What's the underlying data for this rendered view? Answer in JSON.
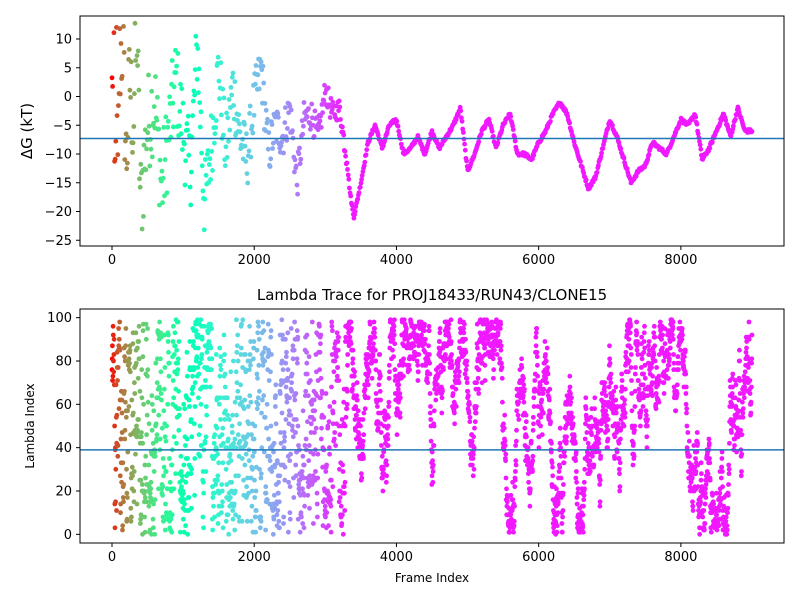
{
  "chart_data": [
    {
      "type": "scatter",
      "title": "",
      "xlabel": "",
      "ylabel": "ΔG (kT)",
      "xlim": [
        -450,
        9450
      ],
      "ylim": [
        -26,
        14
      ],
      "xticks": [
        0,
        2000,
        4000,
        6000,
        8000
      ],
      "yticks": [
        10,
        5,
        0,
        -5,
        -10,
        -15,
        -20,
        -25
      ],
      "colormap": "rainbow (red at frame 0 to violet at later frames)",
      "hline": {
        "y": -7.3,
        "color": "#1f77b4"
      },
      "series": [
        {
          "x": [
            0,
            20,
            40,
            60,
            80,
            100,
            150,
            200,
            250,
            300,
            350,
            400,
            500,
            600,
            700,
            800,
            900,
            1000,
            1100,
            1200,
            1300,
            1400,
            1500,
            1600,
            1700,
            1800,
            1900,
            2000,
            2100,
            2200,
            2300,
            2400,
            2500,
            2600,
            2700,
            2800,
            2900,
            3000,
            3100,
            3200,
            3300,
            3350,
            3400,
            3500,
            3600,
            3700,
            3800,
            3900,
            4000,
            4100,
            4200,
            4300,
            4400,
            4500,
            4600,
            4700,
            4800,
            4900,
            5000,
            5100,
            5200,
            5300,
            5400,
            5500,
            5600,
            5700,
            5800,
            5900,
            6000,
            6100,
            6200,
            6300,
            6400,
            6500,
            6600,
            6700,
            6800,
            6900,
            7000,
            7100,
            7200,
            7300,
            7400,
            7500,
            7600,
            7700,
            7800,
            7900,
            8000,
            8100,
            8200,
            8300,
            8400,
            8500,
            8600,
            8700,
            8800,
            8900,
            9000
          ],
          "y": [
            0,
            13,
            -22,
            8,
            -18,
            5,
            10,
            -12,
            3,
            -5,
            13,
            -19,
            -5,
            0,
            -16,
            -6,
            3,
            -6,
            -13,
            9,
            -19,
            -8,
            5,
            -10,
            2,
            -7,
            -11,
            -1,
            5,
            -10,
            -5,
            -7,
            -2,
            -15,
            -4,
            -3,
            -7,
            1,
            -3,
            -2,
            -11,
            -17,
            -21,
            -15,
            -8,
            -5,
            -9,
            -5,
            -4,
            -10,
            -9,
            -7,
            -10,
            -6,
            -9,
            -7,
            -5,
            -2,
            -13,
            -10,
            -6,
            -4,
            -9,
            -5,
            -3,
            -10,
            -10,
            -11,
            -8,
            -6,
            -3,
            -1,
            -3,
            -8,
            -12,
            -16,
            -14,
            -9,
            -4,
            -7,
            -11,
            -15,
            -13,
            -12,
            -8,
            -9,
            -10,
            -7,
            -4,
            -5,
            -3,
            -11,
            -9,
            -6,
            -3,
            -7,
            -2,
            -6,
            -6
          ]
        }
      ]
    },
    {
      "type": "scatter",
      "title": "Lambda Trace for PROJ18433/RUN43/CLONE15",
      "xlabel": "Frame Index",
      "ylabel": "Lambda Index",
      "xlim": [
        -450,
        9450
      ],
      "ylim": [
        -4,
        104
      ],
      "xticks": [
        0,
        2000,
        4000,
        6000,
        8000
      ],
      "yticks": [
        0,
        20,
        40,
        60,
        80,
        100
      ],
      "colormap": "rainbow (red at frame 0 to violet at later frames)",
      "hline": {
        "y": 39,
        "color": "#1f77b4"
      },
      "series": [
        {
          "x_range": [
            0,
            9000
          ],
          "y_range": [
            0,
            99
          ]
        }
      ]
    }
  ]
}
